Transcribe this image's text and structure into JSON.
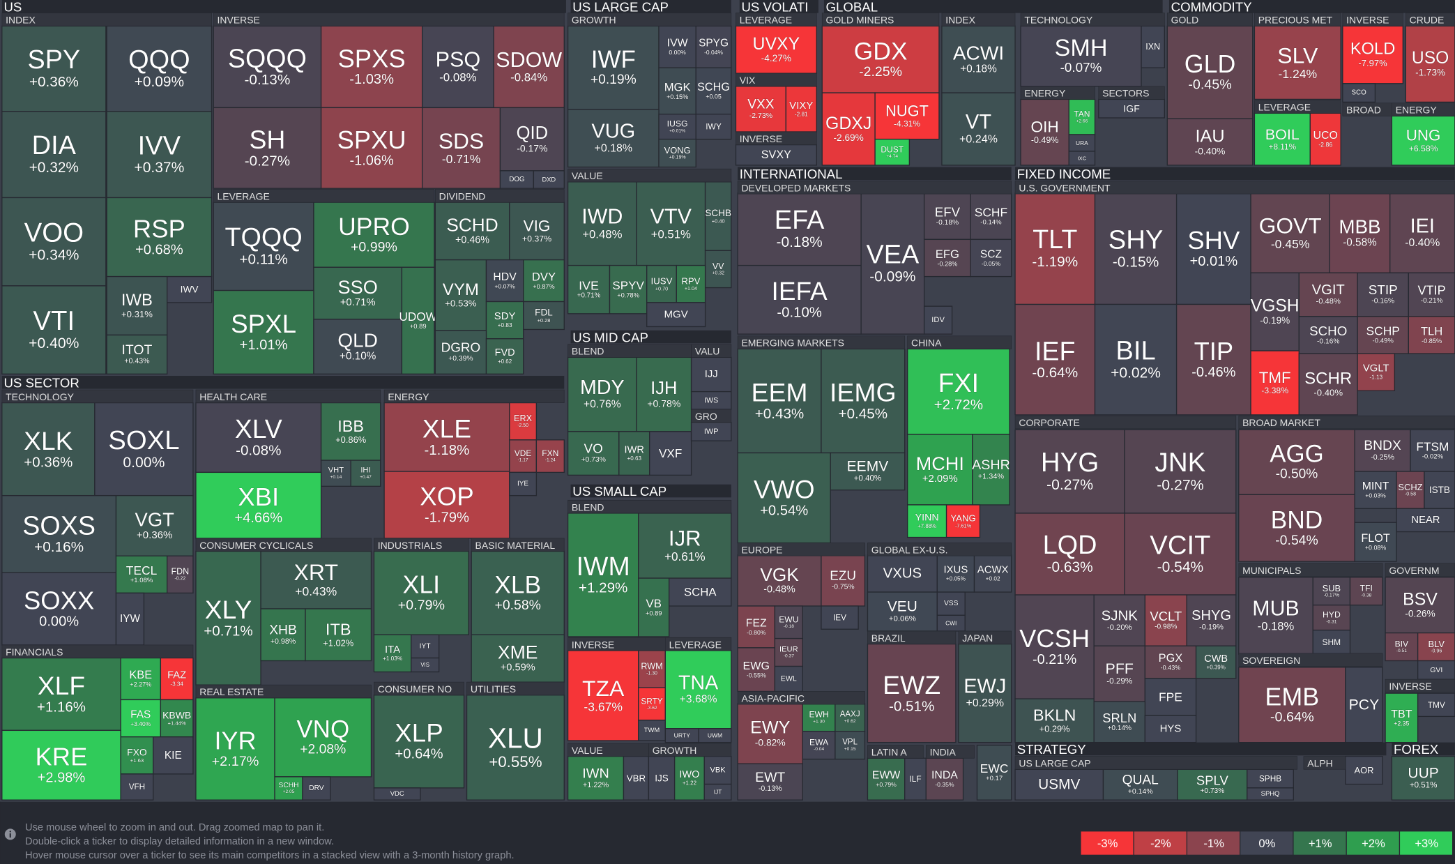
{
  "headers": [
    "US",
    "US LARGE CAP",
    "US VOLATI",
    "GLOBAL",
    "COMMODITY",
    "US SECTOR",
    "US MID CAP",
    "US SMALL CAP",
    "INTERNATIONAL",
    "FIXED INCOME",
    "STRATEGY",
    "FOREX",
    "INDEX",
    "INVERSE",
    "LEVERAGE",
    "DIVIDEND",
    "GROWTH",
    "VALUE",
    "BLEND",
    "VALU",
    "GRO",
    "BLEND",
    "INVERSE",
    "LEVERAGE",
    "VALUE",
    "GROWTH",
    "LEVERAGE",
    "VIX",
    "INVERSE",
    "GOLD MINERS",
    "INDEX",
    "TECHNOLOGY",
    "ENERGY",
    "SECTORS",
    "GOLD",
    "PRECIOUS MET",
    "INVERSE",
    "CRUDE",
    "LEVERAGE",
    "BROAD",
    "ENERGY",
    "DEVELOPED MARKETS",
    "EMERGING MARKETS",
    "CHINA",
    "EUROPE",
    "GLOBAL EX-U.S.",
    "BRAZIL",
    "JAPAN",
    "ASIA-PACIFIC",
    "LATIN A",
    "INDIA",
    "U.S. GOVERNMENT",
    "CORPORATE",
    "BROAD MARKET",
    "MUNICIPALS",
    "GOVERNM",
    "SOVEREIGN",
    "INVERSE",
    "US LARGE CAP",
    "ALPH",
    "TECHNOLOGY",
    "HEALTH CARE",
    "ENERGY",
    "FINANCIALS",
    "CONSUMER CYCLICALS",
    "REAL ESTATE",
    "INDUSTRIALS",
    "BASIC MATERIAL",
    "CONSUMER NO",
    "UTILITIES"
  ],
  "tiles": [
    {
      "ticker": "SPY",
      "change": "+0.36%"
    },
    {
      "ticker": "QQQ",
      "change": "+0.09%"
    },
    {
      "ticker": "DIA",
      "change": "+0.32%"
    },
    {
      "ticker": "IVV",
      "change": "+0.37%"
    },
    {
      "ticker": "VOO",
      "change": "+0.34%"
    },
    {
      "ticker": "RSP",
      "change": "+0.68%"
    },
    {
      "ticker": "VTI",
      "change": "+0.40%"
    },
    {
      "ticker": "IWB",
      "change": "+0.31%"
    },
    {
      "ticker": "IWV"
    },
    {
      "ticker": "ITOT",
      "change": "+0.43%"
    },
    {
      "ticker": "SQQQ",
      "change": "-0.13%"
    },
    {
      "ticker": "SPXS",
      "change": "-1.03%"
    },
    {
      "ticker": "PSQ",
      "change": "-0.08%"
    },
    {
      "ticker": "SDOW",
      "change": "-0.84%"
    },
    {
      "ticker": "SH",
      "change": "-0.27%"
    },
    {
      "ticker": "SPXU",
      "change": "-1.06%"
    },
    {
      "ticker": "SDS",
      "change": "-0.71%"
    },
    {
      "ticker": "QID",
      "change": "-0.17%"
    },
    {
      "ticker": "DOG"
    },
    {
      "ticker": "DXD"
    },
    {
      "ticker": "TQQQ",
      "change": "+0.11%"
    },
    {
      "ticker": "UPRO",
      "change": "+0.99%"
    },
    {
      "ticker": "SSO",
      "change": "+0.71%"
    },
    {
      "ticker": "SPXL",
      "change": "+1.01%"
    },
    {
      "ticker": "QLD",
      "change": "+0.10%"
    },
    {
      "ticker": "UDOW",
      "change": "+0.89"
    },
    {
      "ticker": "SCHD",
      "change": "+0.46%"
    },
    {
      "ticker": "VIG",
      "change": "+0.37%"
    },
    {
      "ticker": "VYM",
      "change": "+0.53%"
    },
    {
      "ticker": "HDV",
      "change": "+0.07%"
    },
    {
      "ticker": "DVY",
      "change": "+0.87%"
    },
    {
      "ticker": "SDY",
      "change": "+0.83"
    },
    {
      "ticker": "FDL",
      "change": "+0.28"
    },
    {
      "ticker": "DGRO",
      "change": "+0.39%"
    },
    {
      "ticker": "FVD",
      "change": "+0.62"
    },
    {
      "ticker": "IWF",
      "change": "+0.19%"
    },
    {
      "ticker": "IVW",
      "change": "0.00%"
    },
    {
      "ticker": "SPYG",
      "change": "-0.04%"
    },
    {
      "ticker": "MGK",
      "change": "+0.15%"
    },
    {
      "ticker": "SCHG",
      "change": "+0.05"
    },
    {
      "ticker": "VUG",
      "change": "+0.18%"
    },
    {
      "ticker": "IUSG",
      "change": "+0.01%"
    },
    {
      "ticker": "IWY"
    },
    {
      "ticker": "VONG",
      "change": "+0.19%"
    },
    {
      "ticker": "IWD",
      "change": "+0.48%"
    },
    {
      "ticker": "VTV",
      "change": "+0.51%"
    },
    {
      "ticker": "SCHB",
      "change": "+0.40"
    },
    {
      "ticker": "VV",
      "change": "+0.32"
    },
    {
      "ticker": "IVE",
      "change": "+0.71%"
    },
    {
      "ticker": "SPYV",
      "change": "+0.78%"
    },
    {
      "ticker": "IUSV",
      "change": "+0.70"
    },
    {
      "ticker": "RPV",
      "change": "+1.04"
    },
    {
      "ticker": "MGV"
    },
    {
      "ticker": "MDY",
      "change": "+0.76%"
    },
    {
      "ticker": "IJH",
      "change": "+0.78%"
    },
    {
      "ticker": "VO",
      "change": "+0.73%"
    },
    {
      "ticker": "IWR",
      "change": "+0.63"
    },
    {
      "ticker": "VXF"
    },
    {
      "ticker": "IJJ"
    },
    {
      "ticker": "IWS"
    },
    {
      "ticker": "IWP"
    },
    {
      "ticker": "IWM",
      "change": "+1.29%"
    },
    {
      "ticker": "IJR",
      "change": "+0.61%"
    },
    {
      "ticker": "VB",
      "change": "+0.89"
    },
    {
      "ticker": "SCHA"
    },
    {
      "ticker": "TZA",
      "change": "-3.67%"
    },
    {
      "ticker": "RWM",
      "change": "-1.30"
    },
    {
      "ticker": "SRTY",
      "change": "-3.62"
    },
    {
      "ticker": "TWM"
    },
    {
      "ticker": "TNA",
      "change": "+3.68%"
    },
    {
      "ticker": "URTY"
    },
    {
      "ticker": "UWM"
    },
    {
      "ticker": "IWN",
      "change": "+1.22%"
    },
    {
      "ticker": "VBR"
    },
    {
      "ticker": "IJS"
    },
    {
      "ticker": "IWO",
      "change": "+1.22"
    },
    {
      "ticker": "VBK"
    },
    {
      "ticker": "IJT"
    },
    {
      "ticker": "UVXY",
      "change": "-4.27%"
    },
    {
      "ticker": "VXX",
      "change": "-2.73%"
    },
    {
      "ticker": "VIXY",
      "change": "-2.81"
    },
    {
      "ticker": "SVXY"
    },
    {
      "ticker": "GDX",
      "change": "-2.25%"
    },
    {
      "ticker": "GDXJ",
      "change": "-2.69%"
    },
    {
      "ticker": "NUGT",
      "change": "-4.31%"
    },
    {
      "ticker": "DUST",
      "change": "+4.74"
    },
    {
      "ticker": "ACWI",
      "change": "+0.18%"
    },
    {
      "ticker": "VT",
      "change": "+0.24%"
    },
    {
      "ticker": "SMH",
      "change": "-0.07%"
    },
    {
      "ticker": "IXN"
    },
    {
      "ticker": "OIH",
      "change": "-0.49%"
    },
    {
      "ticker": "TAN",
      "change": "+2.66"
    },
    {
      "ticker": "URA"
    },
    {
      "ticker": "IXC"
    },
    {
      "ticker": "IGF"
    },
    {
      "ticker": "GLD",
      "change": "-0.45%"
    },
    {
      "ticker": "IAU",
      "change": "-0.40%"
    },
    {
      "ticker": "SLV",
      "change": "-1.24%"
    },
    {
      "ticker": "KOLD",
      "change": "-7.97%"
    },
    {
      "ticker": "SCO"
    },
    {
      "ticker": "USO",
      "change": "-1.73%"
    },
    {
      "ticker": "BOIL",
      "change": "+8.11%"
    },
    {
      "ticker": "UCO",
      "change": "-2.86"
    },
    {
      "ticker": "UNG",
      "change": "+6.58%"
    },
    {
      "ticker": "EFA",
      "change": "-0.18%"
    },
    {
      "ticker": "IEFA",
      "change": "-0.10%"
    },
    {
      "ticker": "VEA",
      "change": "-0.09%"
    },
    {
      "ticker": "EFV",
      "change": "-0.18%"
    },
    {
      "ticker": "SCHF",
      "change": "-0.14%"
    },
    {
      "ticker": "EFG",
      "change": "-0.28%"
    },
    {
      "ticker": "SCZ",
      "change": "-0.05%"
    },
    {
      "ticker": "IDV"
    },
    {
      "ticker": "EEM",
      "change": "+0.43%"
    },
    {
      "ticker": "IEMG",
      "change": "+0.45%"
    },
    {
      "ticker": "VWO",
      "change": "+0.54%"
    },
    {
      "ticker": "EEMV",
      "change": "+0.40%"
    },
    {
      "ticker": "FXI",
      "change": "+2.72%"
    },
    {
      "ticker": "MCHI",
      "change": "+2.09%"
    },
    {
      "ticker": "ASHR",
      "change": "+1.34%"
    },
    {
      "ticker": "YINN",
      "change": "+7.88%"
    },
    {
      "ticker": "YANG",
      "change": "-7.61%"
    },
    {
      "ticker": "VGK",
      "change": "-0.48%"
    },
    {
      "ticker": "EZU",
      "change": "-0.75%"
    },
    {
      "ticker": "FEZ",
      "change": "-0.80%"
    },
    {
      "ticker": "EWU",
      "change": "-0.18"
    },
    {
      "ticker": "IEV"
    },
    {
      "ticker": "EWG",
      "change": "-0.55%"
    },
    {
      "ticker": "IEUR",
      "change": "-0.37"
    },
    {
      "ticker": "EWL"
    },
    {
      "ticker": "EWY",
      "change": "-0.82%"
    },
    {
      "ticker": "EWH",
      "change": "+1.30"
    },
    {
      "ticker": "AAXJ",
      "change": "+0.62"
    },
    {
      "ticker": "EWA",
      "change": "-0.04"
    },
    {
      "ticker": "VPL",
      "change": "+0.15"
    },
    {
      "ticker": "EWT",
      "change": "-0.13%"
    },
    {
      "ticker": "VXUS"
    },
    {
      "ticker": "VEU",
      "change": "+0.06%"
    },
    {
      "ticker": "IXUS",
      "change": "+0.05%"
    },
    {
      "ticker": "ACWX",
      "change": "+0.02"
    },
    {
      "ticker": "VSS"
    },
    {
      "ticker": "CWI"
    },
    {
      "ticker": "EWZ",
      "change": "-0.51%"
    },
    {
      "ticker": "EWJ",
      "change": "+0.29%"
    },
    {
      "ticker": "EWW",
      "change": "+0.79%"
    },
    {
      "ticker": "ILF"
    },
    {
      "ticker": "INDA",
      "change": "-0.35%"
    },
    {
      "ticker": "EWC",
      "change": "+0.17"
    },
    {
      "ticker": "TLT",
      "change": "-1.19%"
    },
    {
      "ticker": "SHY",
      "change": "-0.15%"
    },
    {
      "ticker": "SHV",
      "change": "+0.01%"
    },
    {
      "ticker": "GOVT",
      "change": "-0.45%"
    },
    {
      "ticker": "MBB",
      "change": "-0.58%"
    },
    {
      "ticker": "IEI",
      "change": "-0.40%"
    },
    {
      "ticker": "IEF",
      "change": "-0.64%"
    },
    {
      "ticker": "BIL",
      "change": "+0.02%"
    },
    {
      "ticker": "TIP",
      "change": "-0.46%"
    },
    {
      "ticker": "VGSH",
      "change": "-0.19%"
    },
    {
      "ticker": "VGIT",
      "change": "-0.48%"
    },
    {
      "ticker": "STIP",
      "change": "-0.16%"
    },
    {
      "ticker": "VTIP",
      "change": "-0.21%"
    },
    {
      "ticker": "SCHO",
      "change": "-0.16%"
    },
    {
      "ticker": "SCHP",
      "change": "-0.49%"
    },
    {
      "ticker": "TLH",
      "change": "-0.85%"
    },
    {
      "ticker": "TMF",
      "change": "-3.38%"
    },
    {
      "ticker": "SCHR",
      "change": "-0.40%"
    },
    {
      "ticker": "VGLT",
      "change": "-1.13"
    },
    {
      "ticker": "HYG",
      "change": "-0.27%"
    },
    {
      "ticker": "JNK",
      "change": "-0.27%"
    },
    {
      "ticker": "LQD",
      "change": "-0.63%"
    },
    {
      "ticker": "VCIT",
      "change": "-0.54%"
    },
    {
      "ticker": "VCSH",
      "change": "-0.21%"
    },
    {
      "ticker": "BKLN",
      "change": "+0.29%"
    },
    {
      "ticker": "SJNK",
      "change": "-0.20%"
    },
    {
      "ticker": "VCLT",
      "change": "-0.98%"
    },
    {
      "ticker": "SHYG",
      "change": "-0.19%"
    },
    {
      "ticker": "PFF",
      "change": "-0.29%"
    },
    {
      "ticker": "PGX",
      "change": "-0.43%"
    },
    {
      "ticker": "CWB",
      "change": "+0.39%"
    },
    {
      "ticker": "FPE"
    },
    {
      "ticker": "SRLN",
      "change": "+0.14%"
    },
    {
      "ticker": "HYS"
    },
    {
      "ticker": "AGG",
      "change": "-0.50%"
    },
    {
      "ticker": "BND",
      "change": "-0.54%"
    },
    {
      "ticker": "BNDX",
      "change": "-0.25%"
    },
    {
      "ticker": "FTSM",
      "change": "-0.02%"
    },
    {
      "ticker": "MINT",
      "change": "+0.03%"
    },
    {
      "ticker": "SCHZ",
      "change": "-0.58"
    },
    {
      "ticker": "ISTB"
    },
    {
      "ticker": "NEAR"
    },
    {
      "ticker": "FLOT",
      "change": "+0.08%"
    },
    {
      "ticker": "MUB",
      "change": "-0.18%"
    },
    {
      "ticker": "SUB",
      "change": "-0.17%"
    },
    {
      "ticker": "TFI",
      "change": "-0.38"
    },
    {
      "ticker": "HYD",
      "change": "-0.31"
    },
    {
      "ticker": "SHM"
    },
    {
      "ticker": "BSV",
      "change": "-0.26%"
    },
    {
      "ticker": "BIV",
      "change": "-0.51"
    },
    {
      "ticker": "BLV",
      "change": "-0.96"
    },
    {
      "ticker": "GVI"
    },
    {
      "ticker": "EMB",
      "change": "-0.64%"
    },
    {
      "ticker": "PCY"
    },
    {
      "ticker": "TBT",
      "change": "+2.35"
    },
    {
      "ticker": "TMV"
    },
    {
      "ticker": "USMV"
    },
    {
      "ticker": "QUAL",
      "change": "+0.14%"
    },
    {
      "ticker": "SPLV",
      "change": "+0.73%"
    },
    {
      "ticker": "SPHB"
    },
    {
      "ticker": "SPHQ"
    },
    {
      "ticker": "AOR"
    },
    {
      "ticker": "UUP",
      "change": "+0.51%"
    },
    {
      "ticker": "XLK",
      "change": "+0.36%"
    },
    {
      "ticker": "SOXL",
      "change": "0.00%"
    },
    {
      "ticker": "SOXS",
      "change": "+0.16%"
    },
    {
      "ticker": "VGT",
      "change": "+0.36%"
    },
    {
      "ticker": "SOXX",
      "change": "0.00%"
    },
    {
      "ticker": "TECL",
      "change": "+1.08%"
    },
    {
      "ticker": "FDN",
      "change": "-0.22"
    },
    {
      "ticker": "IYW"
    },
    {
      "ticker": "XLV",
      "change": "-0.08%"
    },
    {
      "ticker": "IBB",
      "change": "+0.86%"
    },
    {
      "ticker": "VHT",
      "change": "+0.14"
    },
    {
      "ticker": "IHI",
      "change": "+0.47"
    },
    {
      "ticker": "XBI",
      "change": "+4.66%"
    },
    {
      "ticker": "XLE",
      "change": "-1.18%"
    },
    {
      "ticker": "ERX",
      "change": "-2.50"
    },
    {
      "ticker": "VDE",
      "change": "-1.17"
    },
    {
      "ticker": "FXN",
      "change": "-1.24"
    },
    {
      "ticker": "XOP",
      "change": "-1.79%"
    },
    {
      "ticker": "IYE"
    },
    {
      "ticker": "XLF",
      "change": "+1.16%"
    },
    {
      "ticker": "KBE",
      "change": "+2.27%"
    },
    {
      "ticker": "FAZ",
      "change": "-3.34"
    },
    {
      "ticker": "FAS",
      "change": "+3.40%"
    },
    {
      "ticker": "KBWB",
      "change": "+1.44%"
    },
    {
      "ticker": "KRE",
      "change": "+2.98%"
    },
    {
      "ticker": "FXO",
      "change": "+1.63"
    },
    {
      "ticker": "KIE"
    },
    {
      "ticker": "VFH"
    },
    {
      "ticker": "XLY",
      "change": "+0.71%"
    },
    {
      "ticker": "XRT",
      "change": "+0.43%"
    },
    {
      "ticker": "XHB",
      "change": "+0.98%"
    },
    {
      "ticker": "ITB",
      "change": "+1.02%"
    },
    {
      "ticker": "IYR",
      "change": "+2.17%"
    },
    {
      "ticker": "VNQ",
      "change": "+2.08%"
    },
    {
      "ticker": "SCHH",
      "change": "+2.05"
    },
    {
      "ticker": "DRV"
    },
    {
      "ticker": "XLI",
      "change": "+0.79%"
    },
    {
      "ticker": "ITA",
      "change": "+1.03%"
    },
    {
      "ticker": "IYT"
    },
    {
      "ticker": "VIS"
    },
    {
      "ticker": "XLB",
      "change": "+0.58%"
    },
    {
      "ticker": "XME",
      "change": "+0.59%"
    },
    {
      "ticker": "XLP",
      "change": "+0.64%"
    },
    {
      "ticker": "VDC"
    },
    {
      "ticker": "XLU",
      "change": "+0.55%"
    }
  ],
  "footer": {
    "lines": [
      "Use mouse wheel to zoom in and out. Drag zoomed map to pan it.",
      "Double-click a ticker to display detailed information in a new window.",
      "Hover mouse cursor over a ticker to see its main competitors in a stacked view with a 3-month history graph."
    ],
    "legend": [
      "-3%",
      "-2%",
      "-1%",
      "0%",
      "+1%",
      "+2%",
      "+3%"
    ]
  }
}
